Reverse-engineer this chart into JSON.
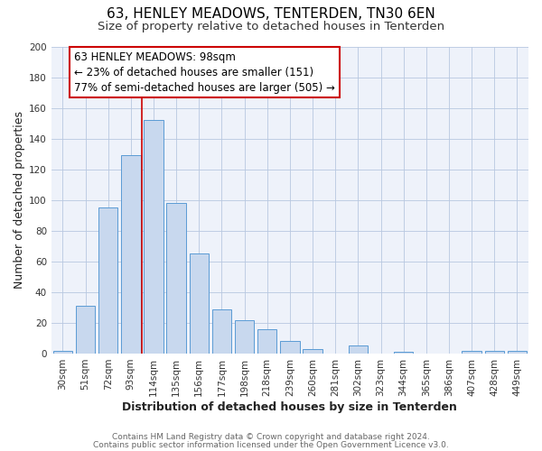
{
  "title": "63, HENLEY MEADOWS, TENTERDEN, TN30 6EN",
  "subtitle": "Size of property relative to detached houses in Tenterden",
  "xlabel": "Distribution of detached houses by size in Tenterden",
  "ylabel": "Number of detached properties",
  "bar_color": "#c8d8ee",
  "bar_edge_color": "#5b9bd5",
  "bg_color": "#eef2fa",
  "grid_color": "#b8c8e0",
  "annotation_box_edge": "#cc0000",
  "vline_color": "#cc0000",
  "categories": [
    "30sqm",
    "51sqm",
    "72sqm",
    "93sqm",
    "114sqm",
    "135sqm",
    "156sqm",
    "177sqm",
    "198sqm",
    "218sqm",
    "239sqm",
    "260sqm",
    "281sqm",
    "302sqm",
    "323sqm",
    "344sqm",
    "365sqm",
    "386sqm",
    "407sqm",
    "428sqm",
    "449sqm"
  ],
  "values": [
    2,
    31,
    95,
    129,
    152,
    98,
    65,
    29,
    22,
    16,
    8,
    3,
    0,
    5,
    0,
    1,
    0,
    0,
    2,
    2,
    2
  ],
  "ylim": [
    0,
    200
  ],
  "yticks": [
    0,
    20,
    40,
    60,
    80,
    100,
    120,
    140,
    160,
    180,
    200
  ],
  "vline_x": 3.5,
  "annotation_line1": "63 HENLEY MEADOWS: 98sqm",
  "annotation_line2": "← 23% of detached houses are smaller (151)",
  "annotation_line3": "77% of semi-detached houses are larger (505) →",
  "footer1": "Contains HM Land Registry data © Crown copyright and database right 2024.",
  "footer2": "Contains public sector information licensed under the Open Government Licence v3.0.",
  "title_fontsize": 11,
  "subtitle_fontsize": 9.5,
  "annotation_fontsize": 8.5,
  "axis_label_fontsize": 9,
  "tick_fontsize": 7.5,
  "footer_fontsize": 6.5
}
